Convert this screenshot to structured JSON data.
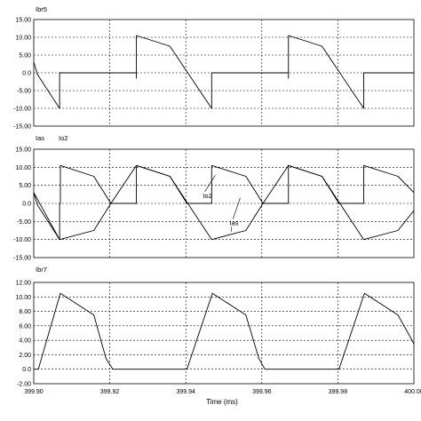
{
  "figure": {
    "xlabel": "Time (ms)"
  },
  "chart_data": [
    {
      "type": "line",
      "labels": [
        "Ibr5"
      ],
      "xlim": [
        399.9,
        400.0
      ],
      "ylim": [
        -15,
        15
      ],
      "yticks": [
        "15.00",
        "10.00",
        "5.00",
        "0.0",
        "-5.00",
        "-10.00",
        "-15.00"
      ],
      "grid": true,
      "series": [
        {
          "points": [
            [
              399.9,
              3
            ],
            [
              399.901,
              -0.5
            ],
            [
              399.9068,
              -10
            ],
            [
              399.9068,
              0
            ],
            [
              399.927,
              0
            ],
            [
              399.927,
              -1.5
            ],
            [
              399.927,
              10.5
            ],
            [
              399.9358,
              7.5
            ],
            [
              399.9468,
              -10
            ],
            [
              399.9468,
              0
            ],
            [
              399.967,
              0
            ],
            [
              399.967,
              -1.5
            ],
            [
              399.967,
              10.5
            ],
            [
              399.9758,
              7.5
            ],
            [
              399.9868,
              -10
            ],
            [
              399.9868,
              0
            ],
            [
              400.0,
              0
            ]
          ]
        }
      ]
    },
    {
      "type": "line",
      "labels": [
        "Ias",
        "Io2"
      ],
      "xlim": [
        399.9,
        400.0
      ],
      "ylim": [
        -15,
        15
      ],
      "yticks": [
        "15.00",
        "10.00",
        "5.00",
        "0.0",
        "-5.00",
        "-10.00",
        "-15.00"
      ],
      "grid": true,
      "annotations": [
        {
          "text": "Io2",
          "x": 399.9445,
          "y": 1.5
        },
        {
          "text": "Ias",
          "x": 399.9515,
          "y": -6
        }
      ],
      "series": [
        {
          "points": [
            [
              399.9,
              3
            ],
            [
              399.901,
              -0.5
            ],
            [
              399.9068,
              -10
            ],
            [
              399.9068,
              0
            ],
            [
              399.907,
              0
            ],
            [
              399.907,
              10.5
            ],
            [
              399.9158,
              7.5
            ],
            [
              399.9203,
              0
            ],
            [
              399.927,
              0
            ],
            [
              399.927,
              10.5
            ],
            [
              399.9358,
              7.5
            ],
            [
              399.9403,
              0
            ],
            [
              399.9468,
              0
            ],
            [
              399.9468,
              10.5
            ],
            [
              399.9558,
              7.5
            ],
            [
              399.9603,
              0
            ],
            [
              399.967,
              0
            ],
            [
              399.967,
              10.5
            ],
            [
              399.9758,
              7.5
            ],
            [
              399.9803,
              0
            ],
            [
              399.9868,
              0
            ],
            [
              399.9868,
              10.5
            ],
            [
              399.9958,
              7.5
            ],
            [
              400.0,
              3
            ]
          ]
        },
        {
          "points": [
            [
              399.9,
              3
            ],
            [
              399.9068,
              -10
            ],
            [
              399.9158,
              -7.5
            ],
            [
              399.9203,
              0
            ],
            [
              399.927,
              10.5
            ],
            [
              399.9358,
              7.5
            ],
            [
              399.9468,
              -10
            ],
            [
              399.9558,
              -7.5
            ],
            [
              399.9603,
              0
            ],
            [
              399.967,
              10.5
            ],
            [
              399.9758,
              7.5
            ],
            [
              399.9868,
              -10
            ],
            [
              399.9958,
              -7.5
            ],
            [
              400.0,
              -2
            ]
          ]
        }
      ]
    },
    {
      "type": "line",
      "labels": [
        "Ibr7"
      ],
      "xlim": [
        399.9,
        400.0
      ],
      "ylim": [
        -2,
        12
      ],
      "yticks": [
        "12.00",
        "10.00",
        "8.00",
        "6.00",
        "4.00",
        "2.00",
        "0.0",
        "-2.00"
      ],
      "xticks": [
        "399.90",
        "399.92",
        "399.94",
        "399.96",
        "399.98",
        "400.00"
      ],
      "grid": true,
      "series": [
        {
          "points": [
            [
              399.9,
              0
            ],
            [
              399.9012,
              0
            ],
            [
              399.907,
              10.5
            ],
            [
              399.9158,
              7.5
            ],
            [
              399.919,
              1.5
            ],
            [
              399.9208,
              0
            ],
            [
              399.9403,
              0
            ],
            [
              399.947,
              10.5
            ],
            [
              399.9558,
              7.5
            ],
            [
              399.9592,
              1.5
            ],
            [
              399.9608,
              0
            ],
            [
              399.9803,
              0
            ],
            [
              399.987,
              10.5
            ],
            [
              399.9958,
              7.5
            ],
            [
              399.999,
              4.5
            ],
            [
              400.0,
              3.5
            ]
          ]
        }
      ]
    }
  ]
}
